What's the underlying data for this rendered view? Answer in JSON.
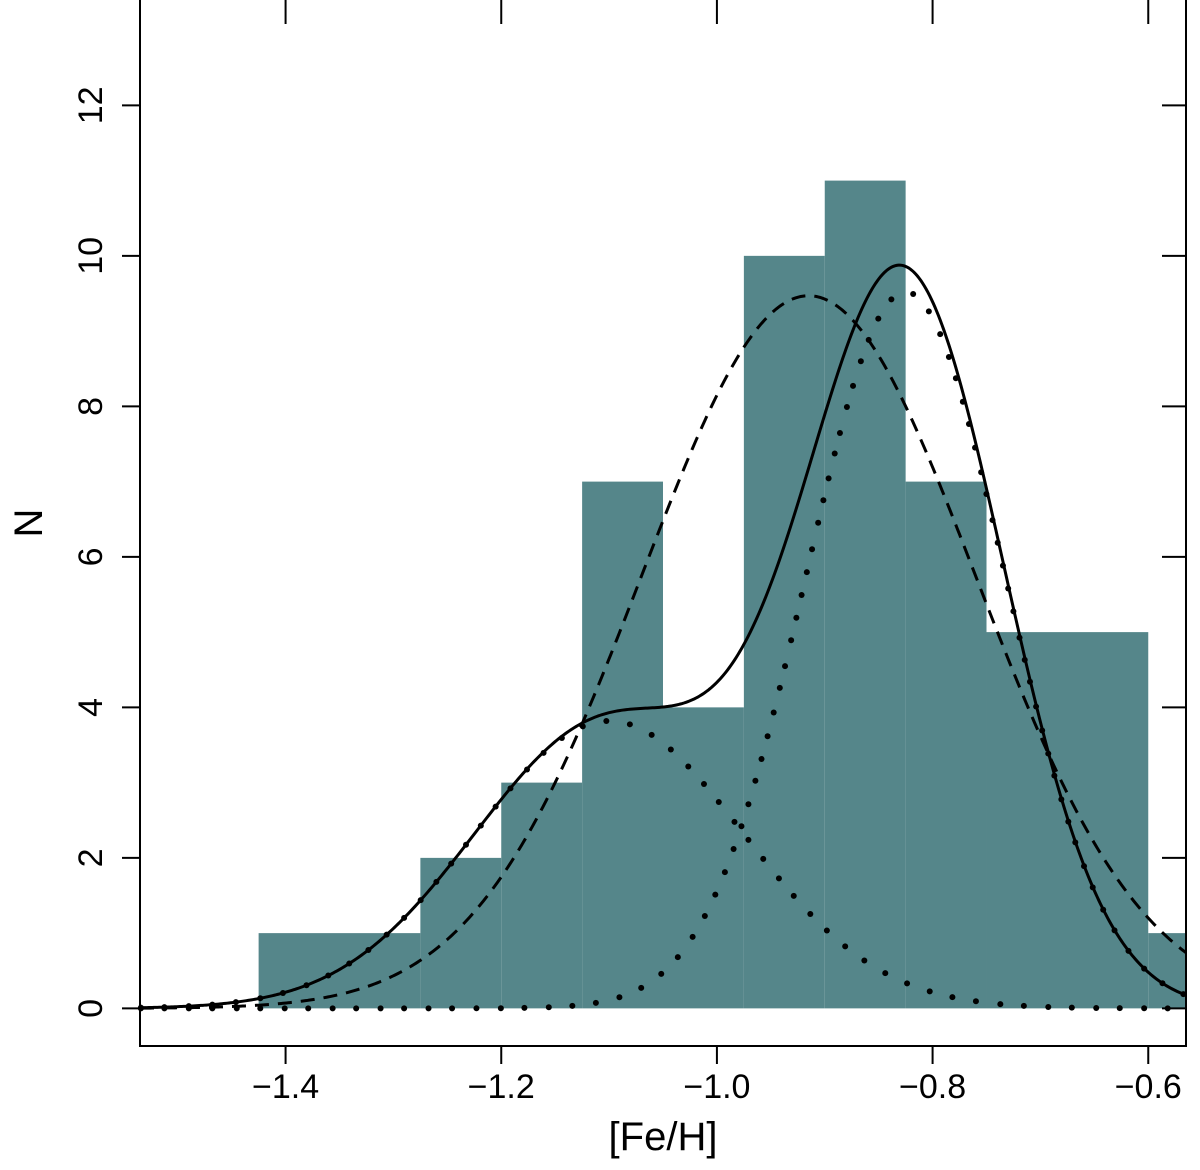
{
  "chart_data": {
    "type": "bar",
    "xlabel": "[Fe/H]",
    "ylabel": "N",
    "xlim": [
      -1.535,
      -0.565
    ],
    "ylim": [
      -0.5,
      13.4
    ],
    "x_ticks": [
      {
        "value": -1.4,
        "label": "−1.4"
      },
      {
        "value": -1.2,
        "label": "−1.2"
      },
      {
        "value": -1.0,
        "label": "−1.0"
      },
      {
        "value": -0.8,
        "label": "−0.8"
      },
      {
        "value": -0.6,
        "label": "−0.6"
      }
    ],
    "y_ticks": [
      {
        "value": 0,
        "label": "0"
      },
      {
        "value": 2,
        "label": "2"
      },
      {
        "value": 4,
        "label": "4"
      },
      {
        "value": 6,
        "label": "6"
      },
      {
        "value": 8,
        "label": "8"
      },
      {
        "value": 10,
        "label": "10"
      },
      {
        "value": 12,
        "label": "12"
      }
    ],
    "histogram": {
      "color": "#55868a",
      "bins": [
        {
          "x0": -1.425,
          "x1": -1.275,
          "count": 1
        },
        {
          "x0": -1.275,
          "x1": -1.2,
          "count": 2
        },
        {
          "x0": -1.2,
          "x1": -1.125,
          "count": 3
        },
        {
          "x0": -1.125,
          "x1": -1.05,
          "count": 7
        },
        {
          "x0": -1.05,
          "x1": -0.975,
          "count": 4
        },
        {
          "x0": -0.975,
          "x1": -0.9,
          "count": 10
        },
        {
          "x0": -0.9,
          "x1": -0.825,
          "count": 11
        },
        {
          "x0": -0.825,
          "x1": -0.75,
          "count": 7
        },
        {
          "x0": -0.75,
          "x1": -0.6,
          "count": 5
        },
        {
          "x0": -0.6,
          "x1": -0.565,
          "count": 1
        }
      ]
    },
    "curves": [
      {
        "style": "dotted",
        "kind": "gaussian",
        "amplitude": 3.82,
        "mean": -1.1,
        "sigma": 0.125
      },
      {
        "style": "dotted",
        "kind": "gaussian",
        "amplitude": 9.52,
        "mean": -0.825,
        "sigma": 0.092
      },
      {
        "style": "dashed",
        "kind": "gaussian",
        "amplitude": 9.47,
        "mean": -0.915,
        "sigma": 0.155
      },
      {
        "style": "solid",
        "kind": "sum",
        "of": [
          0,
          1
        ]
      }
    ]
  }
}
